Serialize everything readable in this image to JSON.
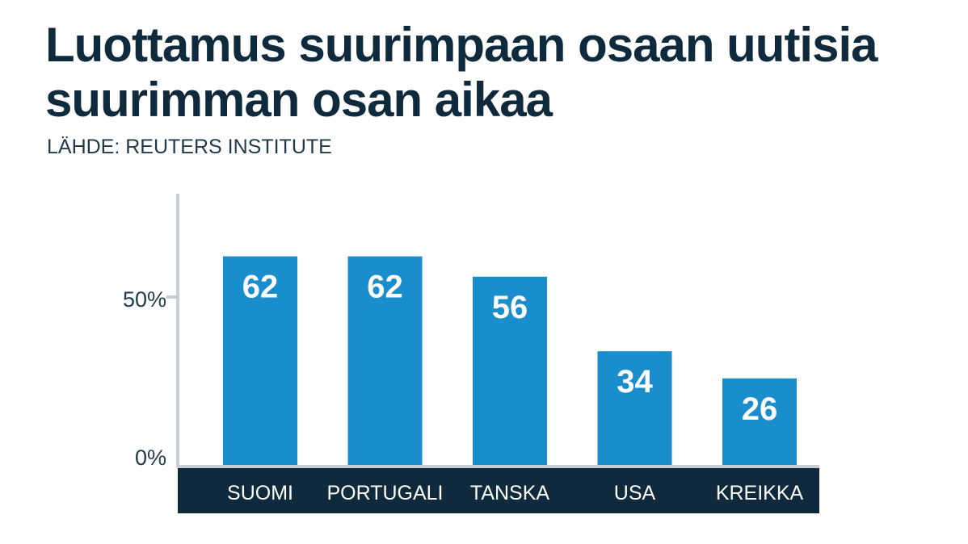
{
  "title_lines": [
    "Luottamus suurimpaan osaan uutisia",
    "suurimman osan aikaa"
  ],
  "source": "LÄHDE: REUTERS INSTITUTE",
  "colors": {
    "bar": "#1a8dcc",
    "band": "#0e2a3c",
    "axis": "#c7cfd4",
    "title": "#0e2a3c",
    "label": "#ffffff"
  },
  "chart_data": {
    "type": "bar",
    "categories": [
      "SUOMI",
      "PORTUGALI",
      "TANSKA",
      "USA",
      "KREIKKA"
    ],
    "values": [
      62,
      62,
      56,
      34,
      26
    ],
    "ylim": [
      0,
      100
    ],
    "yticks": [
      {
        "value": 0,
        "label": "0%"
      },
      {
        "value": 50,
        "label": "50%"
      }
    ],
    "grid": false
  }
}
